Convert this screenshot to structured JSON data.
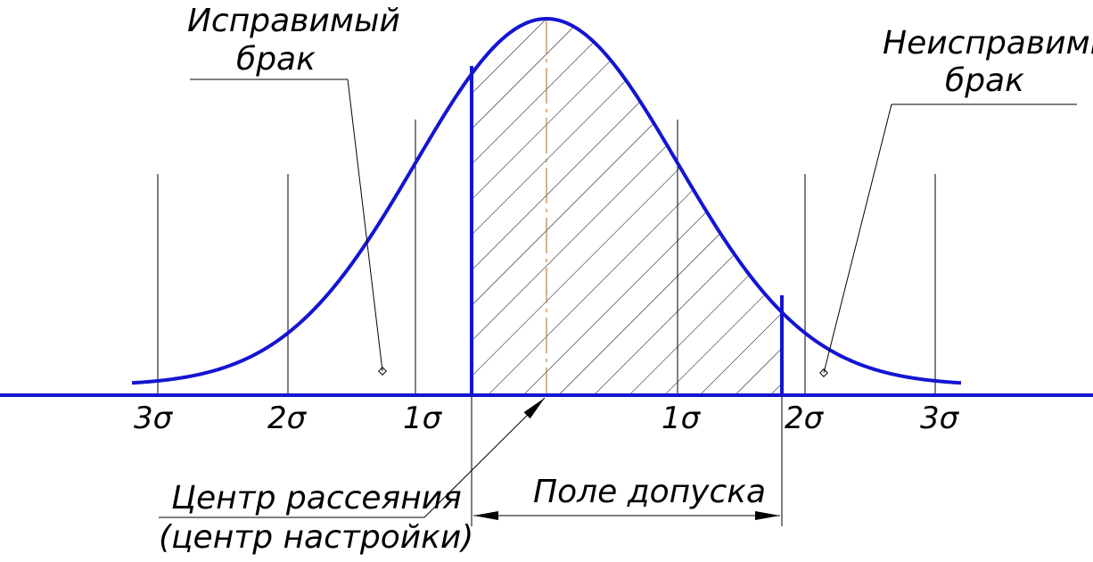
{
  "labels": {
    "correctable_line1": "Исправимый",
    "correctable_line2": "брак",
    "uncorrectable_line1": "Неисправимый",
    "uncorrectable_line2": "брак",
    "scatter_center_line1": "Центр рассеяния",
    "scatter_center_line2": "(центр настройки)",
    "tolerance_field": "Поле допуска"
  },
  "sigma_ticks": [
    "3σ",
    "2σ",
    "1σ",
    "1σ",
    "2σ",
    "3σ"
  ],
  "colors": {
    "curve": "#1414d2",
    "lines": "#000000",
    "axis_centerline": "#b5651d"
  }
}
